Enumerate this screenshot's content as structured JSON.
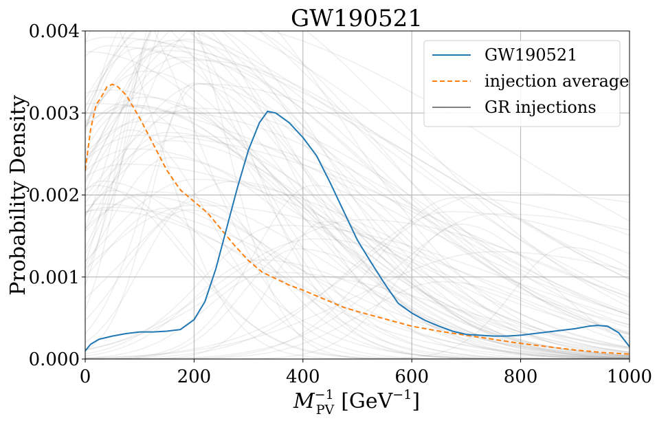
{
  "chart_data": {
    "type": "line",
    "title": "GW190521",
    "xlabel_main": "M",
    "xlabel_sup": "−1",
    "xlabel_sub": "PV",
    "xlabel_units": "[GeV",
    "xlabel_units_sup": "−1",
    "xlabel_units_close": "]",
    "ylabel": "Probability Density",
    "xlim": [
      0,
      1000
    ],
    "ylim": [
      0,
      0.004
    ],
    "x_ticks": [
      0,
      200,
      400,
      600,
      800,
      1000
    ],
    "x_tick_labels": [
      "0",
      "200",
      "400",
      "600",
      "800",
      "1000"
    ],
    "y_ticks": [
      0,
      0.001,
      0.002,
      0.003,
      0.004
    ],
    "y_tick_labels": [
      "0.000",
      "0.001",
      "0.002",
      "0.003",
      "0.004"
    ],
    "grid": true,
    "legend_position": "top-right",
    "legend": [
      {
        "label": "GW190521",
        "color": "#1f77b4",
        "style": "solid"
      },
      {
        "label": "injection average",
        "color": "#ff7f0e",
        "style": "dashed"
      },
      {
        "label": "GR injections",
        "color": "#808080",
        "style": "solid"
      }
    ],
    "series": [
      {
        "name": "GW190521",
        "color": "#1f77b4",
        "style": "solid",
        "x": [
          0,
          10,
          25,
          50,
          75,
          100,
          125,
          150,
          175,
          200,
          220,
          240,
          260,
          280,
          300,
          320,
          335,
          350,
          375,
          400,
          425,
          450,
          475,
          500,
          525,
          550,
          575,
          600,
          625,
          650,
          675,
          700,
          725,
          750,
          775,
          800,
          825,
          850,
          875,
          900,
          925,
          940,
          960,
          980,
          1000
        ],
        "y": [
          0.0001,
          0.00018,
          0.00024,
          0.00028,
          0.00031,
          0.00033,
          0.00033,
          0.00034,
          0.00036,
          0.00048,
          0.0007,
          0.0011,
          0.0016,
          0.0021,
          0.00255,
          0.00288,
          0.00302,
          0.003,
          0.00288,
          0.0027,
          0.00248,
          0.00215,
          0.0018,
          0.00145,
          0.00118,
          0.00092,
          0.00068,
          0.00056,
          0.00047,
          0.0004,
          0.00034,
          0.0003,
          0.00029,
          0.00028,
          0.00028,
          0.00029,
          0.00031,
          0.00033,
          0.00035,
          0.00037,
          0.0004,
          0.00041,
          0.0004,
          0.00032,
          0.00015
        ]
      },
      {
        "name": "injection average",
        "color": "#ff7f0e",
        "style": "dashed",
        "x": [
          0,
          10,
          20,
          30,
          40,
          50,
          60,
          75,
          100,
          125,
          150,
          175,
          200,
          225,
          250,
          275,
          300,
          325,
          350,
          375,
          400,
          425,
          450,
          475,
          500,
          550,
          600,
          650,
          700,
          750,
          800,
          850,
          900,
          950,
          1000
        ],
        "y": [
          0.0023,
          0.0028,
          0.0031,
          0.0032,
          0.00332,
          0.00335,
          0.00332,
          0.00322,
          0.00294,
          0.00262,
          0.0023,
          0.00206,
          0.00192,
          0.00178,
          0.00158,
          0.00138,
          0.0012,
          0.00106,
          0.00098,
          0.0009,
          0.00084,
          0.00077,
          0.0007,
          0.00063,
          0.00058,
          0.00049,
          0.0004,
          0.00034,
          0.00029,
          0.00024,
          0.00019,
          0.00015,
          0.00011,
          8e-05,
          6e-05
        ]
      }
    ],
    "injections": {
      "name": "GR injections",
      "color": "#808080",
      "opacity": 0.13,
      "count": 80
    }
  }
}
